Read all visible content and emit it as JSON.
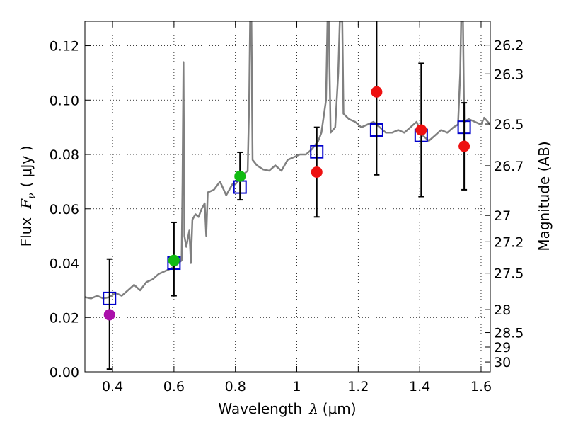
{
  "chart_data": {
    "type": "scatter",
    "xlabel_prefix": "Wavelength",
    "xlabel_symbol": "λ",
    "xlabel_unit": "(μm)",
    "ylabel_prefix": "Flux",
    "ylabel_symbol": "F",
    "ylabel_sub": "ν",
    "ylabel_unit": "( μJy )",
    "y2label": "Magnitude (AB)",
    "xlim": [
      0.31,
      1.63
    ],
    "ylim": [
      0.0,
      0.129
    ],
    "grid": true,
    "x_ticks": [
      0.4,
      0.6,
      0.8,
      1.0,
      1.2,
      1.4,
      1.6
    ],
    "x_tick_labels": [
      "0.4",
      "0.6",
      "0.8",
      "1",
      "1.2",
      "1.4",
      "1.6"
    ],
    "y_ticks": [
      0.0,
      0.02,
      0.04,
      0.06,
      0.08,
      0.1,
      0.12
    ],
    "y_tick_labels": [
      "0.00",
      "0.02",
      "0.04",
      "0.06",
      "0.08",
      "0.10",
      "0.12"
    ],
    "y2_ticks": [
      26.2,
      26.3,
      26.5,
      26.7,
      27,
      27.2,
      27.5,
      28,
      28.5,
      29,
      30
    ],
    "y2_tick_labels": [
      "26.2",
      "26.3",
      "26.5",
      "26.7",
      "27",
      "27.2",
      "27.5",
      "28",
      "28.5",
      "29",
      "30"
    ],
    "colors": {
      "sed": "#808080",
      "model_box": "#0000cc",
      "errorbar": "#000000",
      "purple": "#aa11aa",
      "green": "#11bb11",
      "red": "#ee1111"
    },
    "observed_points": [
      {
        "x": 0.39,
        "y": 0.021,
        "yerr_low": 0.02,
        "yerr_high": 0.0205,
        "color": "purple"
      },
      {
        "x": 0.6,
        "y": 0.041,
        "yerr_low": 0.013,
        "yerr_high": 0.014,
        "color": "green"
      },
      {
        "x": 0.815,
        "y": 0.072,
        "yerr_low": 0.0087,
        "yerr_high": 0.0088,
        "color": "green"
      },
      {
        "x": 1.065,
        "y": 0.0735,
        "yerr_low": 0.0165,
        "yerr_high": 0.0165,
        "color": "red"
      },
      {
        "x": 1.26,
        "y": 0.103,
        "yerr_low": 0.0305,
        "yerr_high": 0.031,
        "color": "red"
      },
      {
        "x": 1.405,
        "y": 0.089,
        "yerr_low": 0.0245,
        "yerr_high": 0.0245,
        "color": "red"
      },
      {
        "x": 1.545,
        "y": 0.083,
        "yerr_low": 0.016,
        "yerr_high": 0.016,
        "color": "red"
      }
    ],
    "model_points": [
      {
        "x": 0.39,
        "y": 0.027
      },
      {
        "x": 0.6,
        "y": 0.04
      },
      {
        "x": 0.815,
        "y": 0.068
      },
      {
        "x": 1.065,
        "y": 0.081
      },
      {
        "x": 1.26,
        "y": 0.089
      },
      {
        "x": 1.405,
        "y": 0.087
      },
      {
        "x": 1.545,
        "y": 0.09
      }
    ],
    "sed_curve": [
      [
        0.31,
        0.0275
      ],
      [
        0.33,
        0.027
      ],
      [
        0.35,
        0.028
      ],
      [
        0.37,
        0.027
      ],
      [
        0.39,
        0.0275
      ],
      [
        0.41,
        0.029
      ],
      [
        0.43,
        0.028
      ],
      [
        0.45,
        0.03
      ],
      [
        0.47,
        0.032
      ],
      [
        0.49,
        0.03
      ],
      [
        0.51,
        0.033
      ],
      [
        0.53,
        0.034
      ],
      [
        0.55,
        0.036
      ],
      [
        0.57,
        0.037
      ],
      [
        0.59,
        0.038
      ],
      [
        0.61,
        0.0395
      ],
      [
        0.625,
        0.041
      ],
      [
        0.628,
        0.07
      ],
      [
        0.631,
        0.114
      ],
      [
        0.634,
        0.05
      ],
      [
        0.64,
        0.046
      ],
      [
        0.65,
        0.052
      ],
      [
        0.655,
        0.04
      ],
      [
        0.66,
        0.056
      ],
      [
        0.67,
        0.058
      ],
      [
        0.68,
        0.057
      ],
      [
        0.69,
        0.06
      ],
      [
        0.7,
        0.062
      ],
      [
        0.705,
        0.05
      ],
      [
        0.71,
        0.066
      ],
      [
        0.73,
        0.067
      ],
      [
        0.75,
        0.07
      ],
      [
        0.77,
        0.065
      ],
      [
        0.79,
        0.069
      ],
      [
        0.8,
        0.069
      ],
      [
        0.82,
        0.072
      ],
      [
        0.84,
        0.074
      ],
      [
        0.845,
        0.1
      ],
      [
        0.848,
        0.129
      ],
      [
        0.852,
        0.129
      ],
      [
        0.856,
        0.078
      ],
      [
        0.87,
        0.076
      ],
      [
        0.89,
        0.0745
      ],
      [
        0.91,
        0.074
      ],
      [
        0.93,
        0.076
      ],
      [
        0.95,
        0.074
      ],
      [
        0.97,
        0.078
      ],
      [
        0.99,
        0.079
      ],
      [
        1.01,
        0.08
      ],
      [
        1.03,
        0.08
      ],
      [
        1.05,
        0.082
      ],
      [
        1.07,
        0.085
      ],
      [
        1.08,
        0.088
      ],
      [
        1.095,
        0.1
      ],
      [
        1.1,
        0.129
      ],
      [
        1.104,
        0.129
      ],
      [
        1.11,
        0.088
      ],
      [
        1.125,
        0.09
      ],
      [
        1.135,
        0.11
      ],
      [
        1.14,
        0.129
      ],
      [
        1.148,
        0.129
      ],
      [
        1.152,
        0.095
      ],
      [
        1.17,
        0.093
      ],
      [
        1.19,
        0.092
      ],
      [
        1.21,
        0.09
      ],
      [
        1.23,
        0.091
      ],
      [
        1.25,
        0.092
      ],
      [
        1.27,
        0.09
      ],
      [
        1.29,
        0.088
      ],
      [
        1.31,
        0.088
      ],
      [
        1.33,
        0.089
      ],
      [
        1.35,
        0.088
      ],
      [
        1.37,
        0.09
      ],
      [
        1.39,
        0.092
      ],
      [
        1.41,
        0.087
      ],
      [
        1.43,
        0.085
      ],
      [
        1.45,
        0.087
      ],
      [
        1.47,
        0.089
      ],
      [
        1.49,
        0.088
      ],
      [
        1.51,
        0.09
      ],
      [
        1.525,
        0.091
      ],
      [
        1.532,
        0.11
      ],
      [
        1.535,
        0.129
      ],
      [
        1.541,
        0.129
      ],
      [
        1.545,
        0.092
      ],
      [
        1.56,
        0.093
      ],
      [
        1.58,
        0.092
      ],
      [
        1.6,
        0.091
      ],
      [
        1.61,
        0.0935
      ],
      [
        1.63,
        0.091
      ]
    ]
  }
}
